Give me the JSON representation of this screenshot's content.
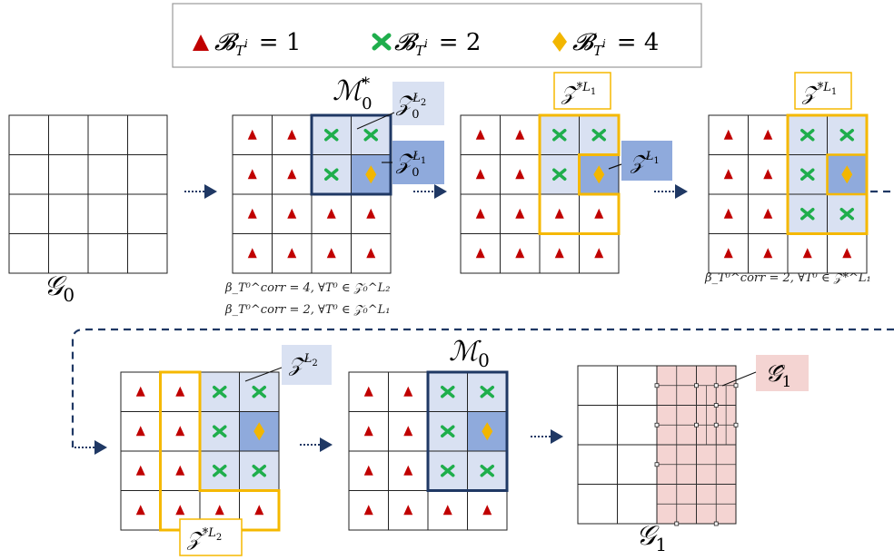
{
  "legend": {
    "items": [
      {
        "marker": "triangle",
        "color": "#c00000",
        "text": "𝓑",
        "sub": "T",
        "sup": "i",
        "value": "= 1"
      },
      {
        "marker": "cross",
        "color": "#1fae4c",
        "text": "𝓑",
        "sub": "T",
        "sup": "i",
        "value": "= 2"
      },
      {
        "marker": "diamond",
        "color": "#f2b600",
        "text": "𝓑",
        "sub": "T",
        "sup": "i",
        "value": "= 4"
      }
    ]
  },
  "labels": {
    "G0": {
      "main": "𝒢",
      "sub": "0"
    },
    "M0star": {
      "main": "ℳ",
      "sup": "*",
      "sub": "0"
    },
    "Z0L2": {
      "main": "𝒵",
      "sup": "L",
      "supsub": "2",
      "sub": "0"
    },
    "Z0L1": {
      "main": "𝒵",
      "sup": "L",
      "supsub": "1",
      "sub": "0"
    },
    "ZstarL1_a": {
      "main": "𝒵",
      "sup": "*L",
      "supsub": "1"
    },
    "ZL1": {
      "main": "𝒵",
      "sup": "L",
      "supsub": "1"
    },
    "ZstarL1_b": {
      "main": "𝒵",
      "sup": "*L",
      "supsub": "1"
    },
    "ZL2": {
      "main": "𝒵",
      "sup": "L",
      "supsub": "2"
    },
    "ZstarL2": {
      "main": "𝒵",
      "sup": "*L",
      "supsub": "2"
    },
    "M0": {
      "main": "ℳ",
      "sub": "0"
    },
    "G1hat": {
      "main": "𝒢̂",
      "sub": "1"
    },
    "G1": {
      "main": "𝒢",
      "sub": "1"
    }
  },
  "annotations": {
    "ann1": "β_T⁰^corr = 4, ∀T⁰ ∈ 𝒵₀^L₂",
    "ann2": "β_T⁰^corr = 2, ∀T⁰ ∈ 𝒵₀^L₁",
    "ann3": "β_T⁰^corr = 2, ∀T⁰ ∈ 𝒵*^L₁"
  },
  "colors": {
    "triangle": "#c00000",
    "cross": "#1fae4c",
    "diamond": "#f2b600",
    "navy": "#1f3864",
    "gold": "#f5b800",
    "light_blue": "#d9e1f2",
    "mid_blue": "#8faadc",
    "pink": "#f4d4d2"
  }
}
